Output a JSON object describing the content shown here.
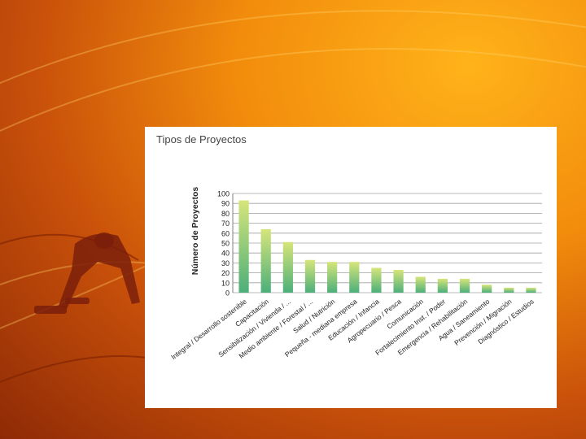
{
  "colors": {
    "bar_top": "#d6e57a",
    "bar_bottom": "#4caf7a",
    "grid": "#a0a0a0",
    "axis_text": "#222222"
  },
  "chart_data": {
    "type": "bar",
    "title": "Tipos de Proyectos",
    "xlabel": "",
    "ylabel": "Número de Proyectos",
    "ylim": [
      0,
      100
    ],
    "yticks": [
      0,
      10,
      20,
      30,
      40,
      50,
      60,
      70,
      80,
      90,
      100
    ],
    "grid": true,
    "categories": [
      "Integral / Desarrollo sostenible",
      "Capacitación",
      "Sensibilización / Vivienda / ...",
      "Medio ambiente / Forestal / ...",
      "Salud / Nutrición",
      "Pequeña - mediana empresa",
      "Educación / Infancia",
      "Agropecuario / Pesca",
      "Comunicación",
      "Fortalecimiento Inst. / Poder",
      "Emergencia / Rehabilitación",
      "Agua / Saneamiento",
      "Prevención / Migración",
      "Diagnóstico / Estudios"
    ],
    "values": [
      93,
      64,
      51,
      33,
      31,
      31,
      25,
      23,
      16,
      14,
      14,
      8,
      5,
      5
    ]
  }
}
